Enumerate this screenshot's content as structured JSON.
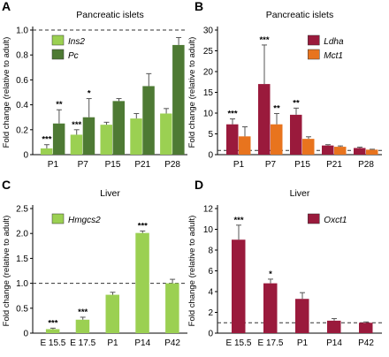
{
  "colors": {
    "light_green": "#9bd052",
    "dark_green": "#4e7a34",
    "crimson": "#9a1a3c",
    "orange": "#e8741e",
    "error_bar": "#555555"
  },
  "chart_data": [
    {
      "id": "A",
      "type": "bar",
      "panel_letter": "A",
      "title": "Pancreatic islets",
      "ylabel": "Fold change (relative to adult)",
      "ylim": [
        0,
        1.0
      ],
      "yticks": [
        "0",
        "0.2",
        "0.4",
        "0.6",
        "0.8",
        "1.0"
      ],
      "ytick_values": [
        0,
        0.2,
        0.4,
        0.6,
        0.8,
        1.0
      ],
      "reference_line": 1.0,
      "categories": [
        "P1",
        "P7",
        "P15",
        "P21",
        "P28"
      ],
      "legend_position": "top-left",
      "series": [
        {
          "name": "Ins2",
          "color": "#9bd052",
          "values": [
            0.05,
            0.16,
            0.24,
            0.29,
            0.33
          ],
          "errors": [
            0.03,
            0.04,
            0.02,
            0.04,
            0.04
          ],
          "sig": [
            "***",
            "***",
            "",
            "",
            ""
          ]
        },
        {
          "name": "Pc",
          "color": "#4e7a34",
          "values": [
            0.25,
            0.3,
            0.43,
            0.55,
            0.88
          ],
          "errors": [
            0.11,
            0.15,
            0.02,
            0.1,
            0.06
          ],
          "sig": [
            "**",
            "*",
            "",
            "",
            ""
          ]
        }
      ]
    },
    {
      "id": "B",
      "type": "bar",
      "panel_letter": "B",
      "title": "Pancreatic islets",
      "ylabel": "Fold change (relative to adult)",
      "ylim": [
        0,
        30
      ],
      "yticks": [
        "0",
        "5",
        "10",
        "15",
        "20",
        "25",
        "30"
      ],
      "ytick_values": [
        0,
        5,
        10,
        15,
        20,
        25,
        30
      ],
      "reference_line": 1.0,
      "categories": [
        "P1",
        "P7",
        "P15",
        "P21",
        "P28"
      ],
      "legend_position": "top-right",
      "series": [
        {
          "name": "Ldha",
          "color": "#9a1a3c",
          "values": [
            7.3,
            17.0,
            9.6,
            2.2,
            1.6
          ],
          "errors": [
            1.3,
            9.4,
            1.6,
            0.2,
            0.2
          ],
          "sig": [
            "***",
            "***",
            "**",
            "",
            ""
          ]
        },
        {
          "name": "Mct1",
          "color": "#e8741e",
          "values": [
            4.4,
            7.3,
            3.8,
            1.9,
            1.2
          ],
          "errors": [
            2.3,
            2.6,
            0.5,
            0.2,
            0.1
          ],
          "sig": [
            "",
            "**",
            "",
            "",
            ""
          ]
        }
      ]
    },
    {
      "id": "C",
      "type": "bar",
      "panel_letter": "C",
      "title": "Liver",
      "ylabel": "Fold change (relative to adult)",
      "ylim": [
        0,
        2.5
      ],
      "yticks": [
        "0",
        "0.5",
        "1.0",
        "1.5",
        "2.0",
        "2.5"
      ],
      "ytick_values": [
        0,
        0.5,
        1.0,
        1.5,
        2.0,
        2.5
      ],
      "reference_line": 1.0,
      "categories": [
        "E 15.5",
        "E 17.5",
        "P1",
        "P14",
        "P42"
      ],
      "legend_position": "top-left",
      "series": [
        {
          "name": "Hmgcs2",
          "color": "#9bd052",
          "values": [
            0.08,
            0.27,
            0.77,
            2.01,
            1.0
          ],
          "errors": [
            0.02,
            0.05,
            0.05,
            0.04,
            0.08
          ],
          "sig": [
            "***",
            "***",
            "",
            "***",
            ""
          ]
        }
      ]
    },
    {
      "id": "D",
      "type": "bar",
      "panel_letter": "D",
      "title": "Liver",
      "ylabel": "Fold change (relative to adult)",
      "ylim": [
        0,
        12
      ],
      "yticks": [
        "0",
        "2",
        "4",
        "6",
        "8",
        "10",
        "12"
      ],
      "ytick_values": [
        0,
        2,
        4,
        6,
        8,
        10,
        12
      ],
      "reference_line": 1.0,
      "categories": [
        "E 15.5",
        "E 17.5",
        "P1",
        "P14",
        "P42"
      ],
      "legend_position": "top-right",
      "series": [
        {
          "name": "Oxct1",
          "color": "#9a1a3c",
          "values": [
            9.0,
            4.8,
            3.3,
            1.2,
            1.0
          ],
          "errors": [
            1.4,
            0.4,
            0.6,
            0.2,
            0.08
          ],
          "sig": [
            "***",
            "*",
            "",
            "",
            ""
          ]
        }
      ]
    }
  ]
}
